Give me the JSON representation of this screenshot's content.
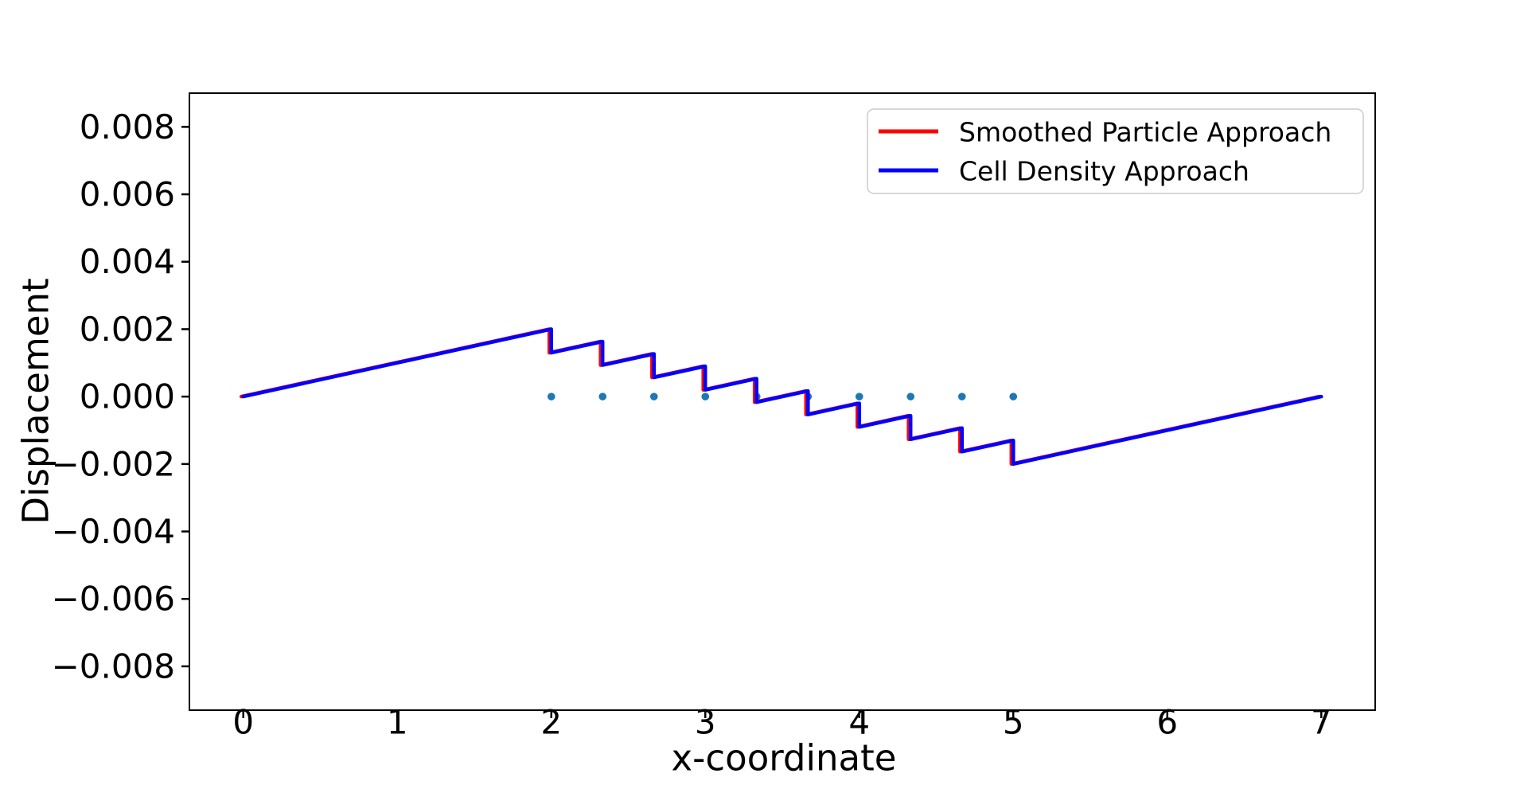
{
  "chart_data": {
    "type": "line",
    "title": "",
    "xlabel": "x-coordinate",
    "ylabel": "Displacement",
    "xlim": [
      -0.35,
      7.35
    ],
    "ylim": [
      -0.0093,
      0.009
    ],
    "grid": false,
    "legend_position": "upper right",
    "x_ticks": [
      0,
      1,
      2,
      3,
      4,
      5,
      6,
      7
    ],
    "x_tick_labels": [
      "0",
      "1",
      "2",
      "3",
      "4",
      "5",
      "6",
      "7"
    ],
    "y_ticks": [
      0.008,
      0.006,
      0.004,
      0.002,
      0.0,
      -0.002,
      -0.004,
      -0.006,
      -0.008
    ],
    "y_tick_labels": [
      "0.008",
      "0.006",
      "0.004",
      "0.002",
      "0.000",
      "−0.002",
      "−0.004",
      "−0.006",
      "−0.008"
    ],
    "axis_color": "#000000",
    "legend_edge_color": "#cccccc",
    "series": [
      {
        "name": "Smoothed Particle Approach",
        "type": "line",
        "color": "#ff0000",
        "in_legend": true,
        "points": [
          [
            0,
            0.0
          ],
          [
            2,
            0.002
          ],
          [
            2,
            0.0013
          ],
          [
            2.3333,
            0.0016333
          ],
          [
            2.3333,
            0.0009333
          ],
          [
            2.6667,
            0.0012667
          ],
          [
            2.6667,
            0.0005667
          ],
          [
            3,
            0.0009
          ],
          [
            3,
            0.0002
          ],
          [
            3.3333,
            0.0005333
          ],
          [
            3.3333,
            -0.0001667
          ],
          [
            3.6667,
            0.0001667
          ],
          [
            3.6667,
            -0.0005333
          ],
          [
            4,
            -0.0002
          ],
          [
            4,
            -0.0009
          ],
          [
            4.3333,
            -0.0005667
          ],
          [
            4.3333,
            -0.0012667
          ],
          [
            4.6667,
            -0.0009333
          ],
          [
            4.6667,
            -0.0016333
          ],
          [
            5,
            -0.0013
          ],
          [
            5,
            -0.002
          ],
          [
            7,
            0.0
          ]
        ]
      },
      {
        "name": "Cell Density Approach",
        "type": "line",
        "color": "#0000ff",
        "in_legend": true,
        "points": [
          [
            0,
            0.0
          ],
          [
            2,
            0.002
          ],
          [
            2,
            0.0013
          ],
          [
            2.3333,
            0.0016333
          ],
          [
            2.3333,
            0.0009333
          ],
          [
            2.6667,
            0.0012667
          ],
          [
            2.6667,
            0.0005667
          ],
          [
            3,
            0.0009
          ],
          [
            3,
            0.0002
          ],
          [
            3.3333,
            0.0005333
          ],
          [
            3.3333,
            -0.0001667
          ],
          [
            3.6667,
            0.0001667
          ],
          [
            3.6667,
            -0.0005333
          ],
          [
            4,
            -0.0002
          ],
          [
            4,
            -0.0009
          ],
          [
            4.3333,
            -0.0005667
          ],
          [
            4.3333,
            -0.0012667
          ],
          [
            4.6667,
            -0.0009333
          ],
          [
            4.6667,
            -0.0016333
          ],
          [
            5,
            -0.0013
          ],
          [
            5,
            -0.002
          ],
          [
            7,
            0.0
          ]
        ]
      },
      {
        "name": "markers",
        "type": "scatter",
        "color": "#1f77b4",
        "in_legend": false,
        "points": [
          [
            2,
            0.0
          ],
          [
            2.3333,
            0.0
          ],
          [
            2.6667,
            0.0
          ],
          [
            3,
            0.0
          ],
          [
            3.3333,
            0.0
          ],
          [
            3.6667,
            0.0
          ],
          [
            4,
            0.0
          ],
          [
            4.3333,
            0.0
          ],
          [
            4.6667,
            0.0
          ],
          [
            5,
            0.0
          ]
        ]
      }
    ]
  }
}
